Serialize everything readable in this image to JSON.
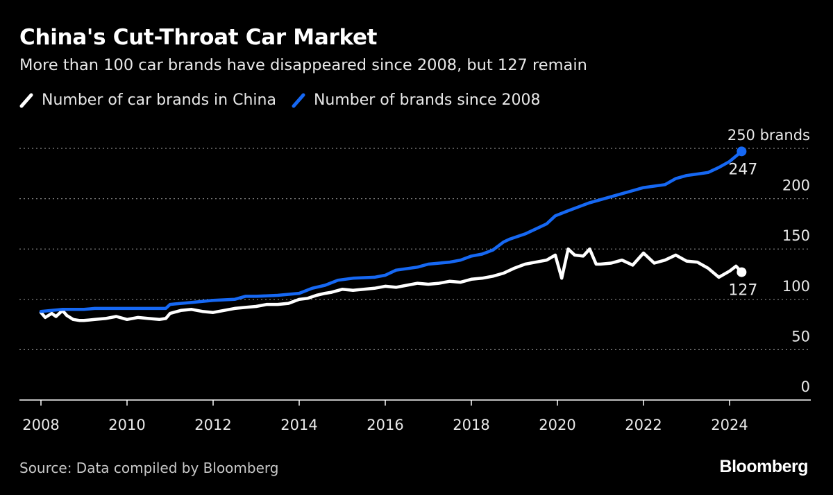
{
  "title": "China's Cut-Throat Car Market",
  "subtitle": "More than 100 car brands have disappeared since 2008, but 127 remain",
  "source": "Source: Data compiled by Bloomberg",
  "logo": "Bloomberg",
  "chart_data": {
    "type": "line",
    "title": "China's Cut-Throat Car Market",
    "subtitle": "More than 100 car brands have disappeared since 2008, but 127 remain",
    "xlabel": "",
    "ylabel": "",
    "xlim": [
      2008,
      2025.8
    ],
    "ylim": [
      0,
      250
    ],
    "x_ticks": [
      2008,
      2010,
      2012,
      2014,
      2016,
      2018,
      2020,
      2022,
      2024
    ],
    "y_ticks": [
      0,
      50,
      100,
      150,
      200,
      250
    ],
    "y_tick_labels": [
      "0",
      "50",
      "100",
      "150",
      "200",
      "250 brands"
    ],
    "grid": "horizontal dotted",
    "legend_position": "top-left",
    "series": [
      {
        "name": "Number of car brands in China",
        "color": "#ffffff",
        "end_label": "127",
        "x": [
          2008.0,
          2008.1,
          2008.25,
          2008.35,
          2008.5,
          2008.6,
          2008.75,
          2008.9,
          2009.0,
          2009.25,
          2009.5,
          2009.75,
          2010.0,
          2010.25,
          2010.5,
          2010.75,
          2010.9,
          2011.0,
          2011.25,
          2011.5,
          2011.75,
          2012.0,
          2012.25,
          2012.5,
          2012.75,
          2013.0,
          2013.25,
          2013.5,
          2013.75,
          2014.0,
          2014.2,
          2014.4,
          2014.6,
          2014.75,
          2015.0,
          2015.25,
          2015.5,
          2015.75,
          2016.0,
          2016.25,
          2016.5,
          2016.75,
          2017.0,
          2017.25,
          2017.5,
          2017.75,
          2018.0,
          2018.25,
          2018.5,
          2018.75,
          2019.0,
          2019.25,
          2019.5,
          2019.75,
          2019.95,
          2020.1,
          2020.25,
          2020.4,
          2020.6,
          2020.75,
          2020.9,
          2021.0,
          2021.25,
          2021.5,
          2021.75,
          2022.0,
          2022.25,
          2022.5,
          2022.75,
          2023.0,
          2023.25,
          2023.5,
          2023.75,
          2024.0,
          2024.15,
          2024.28
        ],
        "values": [
          87,
          82,
          86,
          83,
          89,
          84,
          80,
          79,
          79,
          80,
          81,
          83,
          80,
          82,
          81,
          80,
          81,
          86,
          89,
          90,
          88,
          87,
          89,
          91,
          92,
          93,
          95,
          95,
          96,
          100,
          101,
          104,
          106,
          107,
          110,
          109,
          110,
          111,
          113,
          112,
          114,
          116,
          115,
          116,
          118,
          117,
          120,
          121,
          123,
          126,
          131,
          135,
          137,
          139,
          144,
          121,
          150,
          144,
          143,
          150,
          135,
          135,
          136,
          139,
          134,
          146,
          136,
          139,
          144,
          138,
          137,
          131,
          122,
          128,
          133,
          127
        ]
      },
      {
        "name": "Number of brands since 2008",
        "color": "#1668f3",
        "end_label": "247",
        "x": [
          2008.0,
          2008.5,
          2009.0,
          2009.25,
          2010.0,
          2010.9,
          2011.0,
          2011.5,
          2012.0,
          2012.5,
          2012.75,
          2013.0,
          2013.5,
          2014.0,
          2014.3,
          2014.6,
          2014.9,
          2015.25,
          2015.75,
          2016.0,
          2016.25,
          2016.75,
          2017.0,
          2017.5,
          2017.75,
          2018.0,
          2018.25,
          2018.5,
          2018.75,
          2018.9,
          2019.25,
          2019.5,
          2019.75,
          2019.95,
          2020.25,
          2020.5,
          2020.75,
          2021.0,
          2021.5,
          2021.75,
          2022.0,
          2022.5,
          2022.75,
          2023.0,
          2023.5,
          2023.75,
          2024.0,
          2024.28
        ],
        "values": [
          88,
          90,
          90,
          91,
          91,
          91,
          95,
          97,
          99,
          100,
          103,
          103,
          104,
          106,
          111,
          114,
          119,
          121,
          122,
          124,
          129,
          132,
          135,
          137,
          139,
          143,
          145,
          149,
          157,
          160,
          165,
          170,
          175,
          183,
          188,
          192,
          196,
          199,
          205,
          208,
          211,
          214,
          220,
          223,
          226,
          231,
          237,
          247
        ]
      }
    ]
  }
}
